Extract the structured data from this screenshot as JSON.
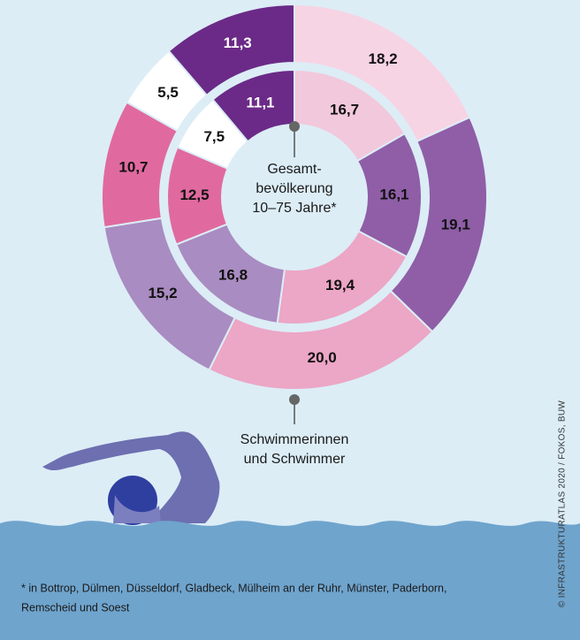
{
  "chart_data": [
    {
      "type": "pie",
      "title": [
        "Schwimmerinnen",
        "und Schwimmer"
      ],
      "values": [
        18.2,
        19.1,
        20.0,
        15.2,
        10.7,
        5.5,
        11.3
      ],
      "value_labels": [
        "18,2",
        "19,1",
        "20,0",
        "15,2",
        "10,7",
        "5,5",
        "11,3"
      ],
      "colors": [
        "#f7d4e4",
        "#8f5ea7",
        "#eca6c6",
        "#a98cc1",
        "#e06a9f",
        "#ffffff",
        "#6b2a87"
      ]
    },
    {
      "type": "pie",
      "title": [
        "Gesamt-",
        "bevölkerung",
        "10–75 Jahre*"
      ],
      "values": [
        16.7,
        16.1,
        19.4,
        16.8,
        12.5,
        7.5,
        11.1
      ],
      "value_labels": [
        "16,7",
        "16,1",
        "19,4",
        "16,8",
        "12,5",
        "7,5",
        "11,1"
      ],
      "colors": [
        "#f2c8dc",
        "#8f5ea7",
        "#eca6c6",
        "#a98cc1",
        "#e06a9f",
        "#ffffff",
        "#6b2a87"
      ]
    }
  ],
  "footnote": [
    "* in Bottrop, Dülmen, Düsseldorf, Gladbeck, Mülheim an der Ruhr, Münster, Paderborn,",
    "Remscheid und Soest"
  ],
  "credit": "© INFRASTRUKTURATLAS 2020 / FOKOS, BUW"
}
